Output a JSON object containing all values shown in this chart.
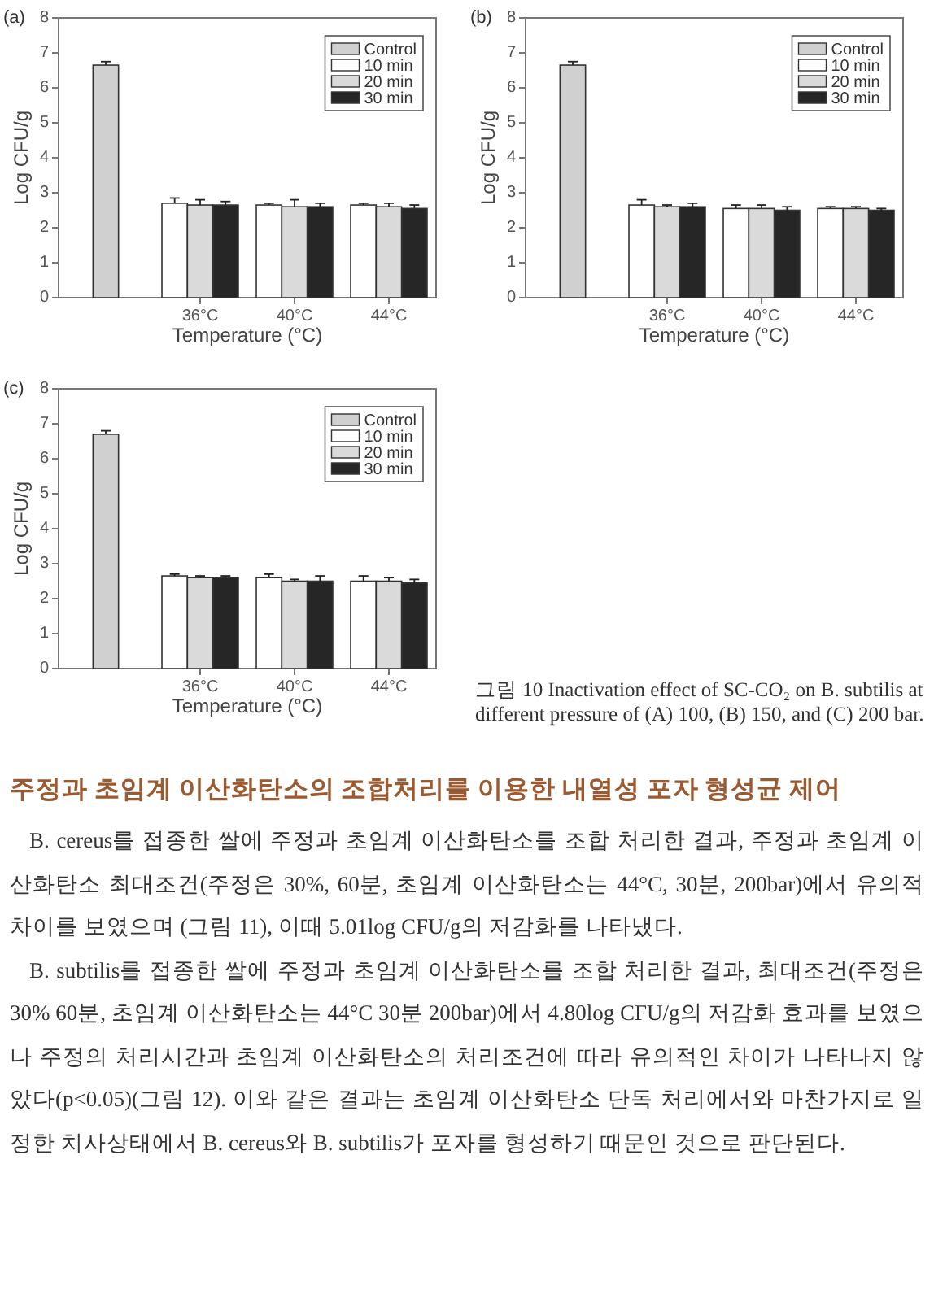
{
  "chart_data": [
    {
      "type": "bar",
      "title": "(a)",
      "xlabel": "Temperature (°C)",
      "ylabel": "Log CFU/g",
      "categories": [
        null,
        "36°C",
        "40°C",
        "44°C"
      ],
      "ylim": [
        0,
        8
      ],
      "yticks": [
        0,
        1,
        2,
        3,
        4,
        5,
        6,
        7,
        8
      ],
      "legend": "top right",
      "series": [
        {
          "name": "Control",
          "color": "#d0d0d0",
          "values": [
            6.65,
            null,
            null,
            null
          ],
          "errors": [
            [
              6.65,
              6.75
            ],
            null,
            null,
            null
          ]
        },
        {
          "name": "10 min",
          "color": "#ffffff",
          "values": [
            null,
            2.7,
            2.65,
            2.65
          ],
          "errors": [
            null,
            [
              2.7,
              2.85
            ],
            [
              2.65,
              2.7
            ],
            [
              2.65,
              2.7
            ]
          ]
        },
        {
          "name": "20 min",
          "color": "#dadada",
          "values": [
            null,
            2.65,
            2.6,
            2.6
          ],
          "errors": [
            null,
            [
              2.65,
              2.8
            ],
            [
              2.6,
              2.8
            ],
            [
              2.6,
              2.7
            ]
          ]
        },
        {
          "name": "30 min",
          "color": "#262626",
          "values": [
            null,
            2.65,
            2.6,
            2.55
          ],
          "errors": [
            null,
            [
              2.65,
              2.75
            ],
            [
              2.6,
              2.7
            ],
            [
              2.55,
              2.65
            ]
          ]
        }
      ]
    },
    {
      "type": "bar",
      "title": "(b)",
      "xlabel": "Temperature (°C)",
      "ylabel": "Log CFU/g",
      "categories": [
        null,
        "36°C",
        "40°C",
        "44°C"
      ],
      "ylim": [
        0,
        8
      ],
      "yticks": [
        0,
        1,
        2,
        3,
        4,
        5,
        6,
        7,
        8
      ],
      "legend": "top right",
      "series": [
        {
          "name": "Control",
          "color": "#d0d0d0",
          "values": [
            6.65,
            null,
            null,
            null
          ],
          "errors": [
            [
              6.65,
              6.75
            ],
            null,
            null,
            null
          ]
        },
        {
          "name": "10 min",
          "color": "#ffffff",
          "values": [
            null,
            2.65,
            2.55,
            2.55
          ],
          "errors": [
            null,
            [
              2.65,
              2.8
            ],
            [
              2.55,
              2.65
            ],
            [
              2.55,
              2.6
            ]
          ]
        },
        {
          "name": "20 min",
          "color": "#dadada",
          "values": [
            null,
            2.6,
            2.55,
            2.55
          ],
          "errors": [
            null,
            [
              2.6,
              2.65
            ],
            [
              2.55,
              2.65
            ],
            [
              2.55,
              2.6
            ]
          ]
        },
        {
          "name": "30 min",
          "color": "#262626",
          "values": [
            null,
            2.6,
            2.5,
            2.5
          ],
          "errors": [
            null,
            [
              2.6,
              2.7
            ],
            [
              2.5,
              2.6
            ],
            [
              2.5,
              2.55
            ]
          ]
        }
      ]
    },
    {
      "type": "bar",
      "title": "(c)",
      "xlabel": "Temperature (°C)",
      "ylabel": "Log CFU/g",
      "categories": [
        null,
        "36°C",
        "40°C",
        "44°C"
      ],
      "ylim": [
        0,
        8
      ],
      "yticks": [
        0,
        1,
        2,
        3,
        4,
        5,
        6,
        7,
        8
      ],
      "legend": "top right",
      "series": [
        {
          "name": "Control",
          "color": "#d0d0d0",
          "values": [
            6.7,
            null,
            null,
            null
          ],
          "errors": [
            [
              6.7,
              6.8
            ],
            null,
            null,
            null
          ]
        },
        {
          "name": "10 min",
          "color": "#ffffff",
          "values": [
            null,
            2.65,
            2.6,
            2.5
          ],
          "errors": [
            null,
            [
              2.65,
              2.7
            ],
            [
              2.6,
              2.7
            ],
            [
              2.5,
              2.65
            ]
          ]
        },
        {
          "name": "20 min",
          "color": "#dadada",
          "values": [
            null,
            2.6,
            2.5,
            2.5
          ],
          "errors": [
            null,
            [
              2.6,
              2.65
            ],
            [
              2.5,
              2.55
            ],
            [
              2.5,
              2.6
            ]
          ]
        },
        {
          "name": "30 min",
          "color": "#262626",
          "values": [
            null,
            2.6,
            2.5,
            2.45
          ],
          "errors": [
            null,
            [
              2.6,
              2.65
            ],
            [
              2.5,
              2.65
            ],
            [
              2.45,
              2.55
            ]
          ]
        }
      ],
      "annotations": [
        "그림 10 Inactivation effect of SC-CO₂ on B. subtilis at different pressure of (A) 100, (B) 150, and (C) 200 bar."
      ]
    },
    {
      "type": "other",
      "title": "주정과 초임계 이산화탄소의 조합처리를 이용한 내열성 포자 형성균 제어",
      "annotations": [
        "B. cereus를 접종한 쌀에 주정과 초임계 이산화탄소를 조합 처리한 결과, 주정과 초임계 이산화탄소 최대조건(주정은 30%, 60분, 초임계 이산화탄소는 44°C, 30분, 200bar)에서 유의적 차이를 보였으며 (그림 11), 이때 5.01log CFU/g의 저감화를 나타냈다.",
        "B. subtilis를 접종한 쌀에 주정과 초임계 이산화탄소를 조합 처리한 결과, 최대조건(주정은 30% 60분, 초임계 이산화탄소는 44°C 30분 200bar)에서 4.80log CFU/g의 저감화 효과를 보였으나 주정의 처리시간과 초임계 이산화탄소의 처리조건에 따라 유의적인 차이가 나타나지 않았다(p<0.05)(그림 12). 이와 같은 결과는 초임계 이산화탄소 단독 처리에서와 마찬가지로 일정한 치사상태에서 B. cereus와 B. subtilis가 포자를 형성하기 때문인 것으로 판단된다."
      ]
    }
  ]
}
